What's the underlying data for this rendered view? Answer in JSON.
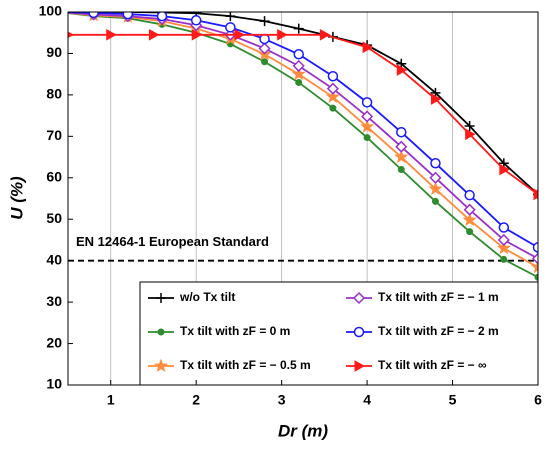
{
  "chart_data": {
    "type": "line",
    "xlabel": "Dr (m)",
    "ylabel": "U (%)",
    "xlim": [
      0.5,
      6
    ],
    "xticks": [
      1,
      2,
      3,
      4,
      5,
      6
    ],
    "ylim": [
      10,
      100
    ],
    "yticks": [
      10,
      20,
      30,
      40,
      50,
      60,
      70,
      80,
      90,
      100
    ],
    "xgrid": true,
    "annotation": "EN 12464-1 European Standard",
    "reference_line": 40,
    "series": [
      {
        "name": "w/o Tx tilt",
        "color": "#000000",
        "marker": "plus",
        "x": [
          0.4,
          0.8,
          1.2,
          1.6,
          2.0,
          2.4,
          2.8,
          3.2,
          3.6,
          4.0,
          4.4,
          4.8,
          5.2,
          5.6,
          6.0
        ],
        "values": [
          100,
          100,
          100,
          99.9,
          99.7,
          99,
          97.8,
          96,
          94,
          92,
          87.5,
          80.5,
          72.5,
          63.5,
          56
        ]
      },
      {
        "name": "Tx tilt with zF = 0 m",
        "color": "#2e8b2e",
        "marker": "dot",
        "x": [
          0.4,
          0.8,
          1.2,
          1.6,
          2.0,
          2.4,
          2.8,
          3.2,
          3.6,
          4.0,
          4.4,
          4.8,
          5.2,
          5.6,
          6.0
        ],
        "values": [
          100,
          99,
          98.5,
          97,
          95,
          92.3,
          88,
          83,
          76.8,
          69.7,
          62,
          54.3,
          47,
          40.3,
          36
        ]
      },
      {
        "name": "Tx tilt with zF = − 0.5 m",
        "color": "#ff8c3c",
        "marker": "star",
        "x": [
          0.4,
          0.8,
          1.2,
          1.6,
          2.0,
          2.4,
          2.8,
          3.2,
          3.6,
          4.0,
          4.4,
          4.8,
          5.2,
          5.6,
          6.0
        ],
        "values": [
          100,
          99.2,
          98.8,
          97.8,
          96,
          93.5,
          89.8,
          85,
          79.5,
          72.3,
          65,
          57.3,
          49.8,
          43,
          38.4
        ]
      },
      {
        "name": "Tx tilt with zF = − 1 m",
        "color": "#9b30c8",
        "marker": "diamond",
        "x": [
          0.4,
          0.8,
          1.2,
          1.6,
          2.0,
          2.4,
          2.8,
          3.2,
          3.6,
          4.0,
          4.4,
          4.8,
          5.2,
          5.6,
          6.0
        ],
        "values": [
          100,
          99.4,
          99,
          98.3,
          96.8,
          94.5,
          91.2,
          87,
          81.5,
          74.8,
          67.5,
          60,
          52.3,
          45,
          40.5
        ]
      },
      {
        "name": "Tx tilt with zF = − 2 m",
        "color": "#1a1aff",
        "marker": "circle",
        "x": [
          0.4,
          0.8,
          1.2,
          1.6,
          2.0,
          2.4,
          2.8,
          3.2,
          3.6,
          4.0,
          4.4,
          4.8,
          5.2,
          5.6,
          6.0
        ],
        "values": [
          100,
          99.8,
          99.5,
          99,
          98,
          96.3,
          93.5,
          89.8,
          84.5,
          78.2,
          71,
          63.5,
          55.8,
          48,
          43.2
        ]
      },
      {
        "name": "Tx tilt with zF = − ∞",
        "color": "#ff1a1a",
        "marker": "triangle",
        "x": [
          0.5,
          1.0,
          1.5,
          2.0,
          2.5,
          3.0,
          3.5,
          4.0,
          4.4,
          4.8,
          5.2,
          5.6,
          6.0
        ],
        "values": [
          94.5,
          94.5,
          94.5,
          94.5,
          94.5,
          94.5,
          94.5,
          91.5,
          86,
          79,
          70.5,
          62,
          56
        ]
      }
    ]
  }
}
